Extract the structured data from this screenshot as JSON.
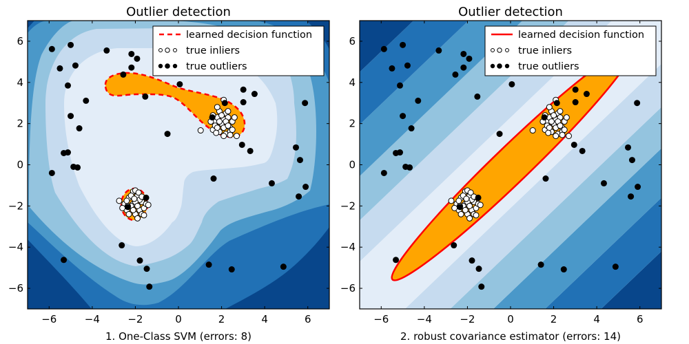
{
  "chart_data": [
    {
      "type": "scatter",
      "title": "Outlier detection",
      "xlabel": "1. One-Class SVM (errors: 8)",
      "ylabel": "",
      "xlim": [
        -7,
        7
      ],
      "ylim": [
        -7,
        7
      ],
      "xticks": [
        "−6",
        "−4",
        "−2",
        "0",
        "2",
        "4",
        "6"
      ],
      "yticks": [
        "6",
        "4",
        "2",
        "0",
        "−2",
        "−4",
        "−6"
      ],
      "grid": false,
      "background": "filled contour of decision function (blues), inlier region filled orange",
      "decision_line_style": "dashed",
      "legend": {
        "position": "top-right",
        "entries": [
          "learned decision function",
          "true inliers",
          "true outliers"
        ]
      },
      "colors": {
        "decision": "#ff0000",
        "inlier_region": "#ffa500",
        "contours": [
          "#08468b",
          "#2171b5",
          "#4a98c9",
          "#94c4df",
          "#c6dbef",
          "#e3edf8"
        ]
      },
      "series": [
        {
          "name": "true inliers",
          "points": [
            [
              2.1,
              2.2
            ],
            [
              1.7,
              2.1
            ],
            [
              2.4,
              1.8
            ],
            [
              1.9,
              1.6
            ],
            [
              2.2,
              2.5
            ],
            [
              1.6,
              1.7
            ],
            [
              2.3,
              2.3
            ],
            [
              2.0,
              2.0
            ],
            [
              1.8,
              2.3
            ],
            [
              2.5,
              2.1
            ],
            [
              2.1,
              1.8
            ],
            [
              1.7,
              1.9
            ],
            [
              2.2,
              1.5
            ],
            [
              1.9,
              2.6
            ],
            [
              2.6,
              2.3
            ],
            [
              2.4,
              1.6
            ],
            [
              1.5,
              2.1
            ],
            [
              2.2,
              2.1
            ],
            [
              1.8,
              1.8
            ],
            [
              2.3,
              1.9
            ],
            [
              2.0,
              2.4
            ],
            [
              1.6,
              2.4
            ],
            [
              2.1,
              1.4
            ],
            [
              2.5,
              1.7
            ],
            [
              1.9,
              2.1
            ],
            [
              2.3,
              2.6
            ],
            [
              2.7,
              1.4
            ],
            [
              1.8,
              2.8
            ],
            [
              2.1,
              3.15
            ],
            [
              1.03,
              1.67
            ],
            [
              2.4,
              1.45
            ],
            [
              1.75,
              1.55
            ],
            [
              -2.1,
              -1.9
            ],
            [
              -1.8,
              -2.2
            ],
            [
              -2.3,
              -1.6
            ],
            [
              -1.7,
              -1.8
            ],
            [
              -2.0,
              -2.4
            ],
            [
              -2.4,
              -2.2
            ],
            [
              -1.9,
              -1.5
            ],
            [
              -2.2,
              -2.0
            ],
            [
              -1.6,
              -2.1
            ],
            [
              -2.1,
              -1.3
            ],
            [
              -1.9,
              -2.6
            ],
            [
              -2.5,
              -1.9
            ],
            [
              -1.5,
              -1.9
            ],
            [
              -2.3,
              -2.4
            ],
            [
              -1.8,
              -1.7
            ],
            [
              -2.0,
              -1.8
            ],
            [
              -1.7,
              -2.4
            ],
            [
              -2.2,
              -1.5
            ],
            [
              -2.6,
              -2.1
            ],
            [
              -1.9,
              -2.0
            ],
            [
              -2.0,
              -1.25
            ],
            [
              -1.6,
              -2.45
            ],
            [
              -2.4,
              -1.75
            ],
            [
              -1.4,
              -1.95
            ],
            [
              -2.75,
              -1.75
            ],
            [
              -2.1,
              -2.2
            ],
            [
              -1.85,
              -1.35
            ],
            [
              -2.35,
              -2.0
            ],
            [
              -1.7,
              -1.55
            ],
            [
              -2.05,
              -1.65
            ]
          ]
        },
        {
          "name": "true outliers",
          "points": [
            [
              -5.87,
              5.62
            ],
            [
              -5.0,
              5.82
            ],
            [
              -5.5,
              4.68
            ],
            [
              -4.78,
              4.82
            ],
            [
              -5.13,
              3.85
            ],
            [
              -4.29,
              3.11
            ],
            [
              -5.0,
              2.37
            ],
            [
              -4.6,
              1.77
            ],
            [
              -5.32,
              0.57
            ],
            [
              -5.13,
              0.6
            ],
            [
              -4.87,
              -0.1
            ],
            [
              -4.68,
              -0.13
            ],
            [
              -5.87,
              -0.4
            ],
            [
              -3.33,
              5.55
            ],
            [
              -2.18,
              5.38
            ],
            [
              -1.92,
              5.15
            ],
            [
              -2.18,
              4.72
            ],
            [
              -2.56,
              4.38
            ],
            [
              -1.54,
              3.31
            ],
            [
              0.06,
              3.91
            ],
            [
              -0.51,
              1.5
            ],
            [
              3.01,
              3.65
            ],
            [
              3.53,
              3.44
            ],
            [
              3.01,
              3.04
            ],
            [
              2.15,
              3.0
            ],
            [
              1.57,
              2.3
            ],
            [
              5.87,
              3.0
            ],
            [
              2.95,
              0.97
            ],
            [
              3.33,
              0.67
            ],
            [
              5.45,
              0.84
            ],
            [
              5.64,
              0.23
            ],
            [
              1.63,
              -0.67
            ],
            [
              4.33,
              -0.9
            ],
            [
              5.9,
              -1.07
            ],
            [
              5.58,
              -1.54
            ],
            [
              -2.63,
              -3.91
            ],
            [
              -5.32,
              -4.62
            ],
            [
              -1.79,
              -4.65
            ],
            [
              -1.47,
              -5.05
            ],
            [
              -1.35,
              -5.92
            ],
            [
              1.41,
              -4.85
            ],
            [
              2.47,
              -5.08
            ],
            [
              4.87,
              -4.95
            ],
            [
              -1.5,
              -1.6
            ],
            [
              -2.35,
              -2.05
            ]
          ]
        }
      ]
    },
    {
      "type": "scatter",
      "title": "Outlier detection",
      "xlabel": "2. robust covariance estimator (errors: 14)",
      "ylabel": "",
      "xlim": [
        -7,
        7
      ],
      "ylim": [
        -7,
        7
      ],
      "xticks": [
        "−6",
        "−4",
        "−2",
        "0",
        "2",
        "4",
        "6"
      ],
      "yticks": [
        "6",
        "4",
        "2",
        "0",
        "−2",
        "−4",
        "−6"
      ],
      "grid": false,
      "background": "filled contour of Mahalanobis decision function (blues), inlier ellipse filled orange",
      "decision_line_style": "solid",
      "legend": {
        "position": "top-right",
        "entries": [
          "learned decision function",
          "true inliers",
          "true outliers"
        ]
      },
      "colors": {
        "decision": "#ff0000",
        "inlier_region": "#ffa500",
        "contours": [
          "#08468b",
          "#2171b5",
          "#4a98c9",
          "#94c4df",
          "#c6dbef",
          "#e3edf8"
        ]
      },
      "series": [
        {
          "name": "true inliers",
          "points": [
            [
              2.1,
              2.2
            ],
            [
              1.7,
              2.1
            ],
            [
              2.4,
              1.8
            ],
            [
              1.9,
              1.6
            ],
            [
              2.2,
              2.5
            ],
            [
              1.6,
              1.7
            ],
            [
              2.3,
              2.3
            ],
            [
              2.0,
              2.0
            ],
            [
              1.8,
              2.3
            ],
            [
              2.5,
              2.1
            ],
            [
              2.1,
              1.8
            ],
            [
              1.7,
              1.9
            ],
            [
              2.2,
              1.5
            ],
            [
              1.9,
              2.6
            ],
            [
              2.6,
              2.3
            ],
            [
              2.4,
              1.6
            ],
            [
              1.5,
              2.1
            ],
            [
              2.2,
              2.1
            ],
            [
              1.8,
              1.8
            ],
            [
              2.3,
              1.9
            ],
            [
              2.0,
              2.4
            ],
            [
              1.6,
              2.4
            ],
            [
              2.1,
              1.4
            ],
            [
              2.5,
              1.7
            ],
            [
              1.9,
              2.1
            ],
            [
              2.3,
              2.6
            ],
            [
              2.7,
              1.4
            ],
            [
              1.8,
              2.8
            ],
            [
              2.1,
              3.15
            ],
            [
              1.03,
              1.67
            ],
            [
              2.4,
              1.45
            ],
            [
              1.75,
              1.55
            ],
            [
              -2.1,
              -1.9
            ],
            [
              -1.8,
              -2.2
            ],
            [
              -2.3,
              -1.6
            ],
            [
              -1.7,
              -1.8
            ],
            [
              -2.0,
              -2.4
            ],
            [
              -2.4,
              -2.2
            ],
            [
              -1.9,
              -1.5
            ],
            [
              -2.2,
              -2.0
            ],
            [
              -1.6,
              -2.1
            ],
            [
              -2.1,
              -1.3
            ],
            [
              -1.9,
              -2.6
            ],
            [
              -2.5,
              -1.9
            ],
            [
              -1.5,
              -1.9
            ],
            [
              -2.3,
              -2.4
            ],
            [
              -1.8,
              -1.7
            ],
            [
              -2.0,
              -1.8
            ],
            [
              -1.7,
              -2.4
            ],
            [
              -2.2,
              -1.5
            ],
            [
              -2.6,
              -2.1
            ],
            [
              -1.9,
              -2.0
            ],
            [
              -2.0,
              -1.25
            ],
            [
              -1.6,
              -2.45
            ],
            [
              -2.4,
              -1.75
            ],
            [
              -1.4,
              -1.95
            ],
            [
              -2.75,
              -1.75
            ],
            [
              -2.1,
              -2.2
            ],
            [
              -1.85,
              -1.35
            ],
            [
              -2.35,
              -2.0
            ],
            [
              -1.7,
              -1.55
            ],
            [
              -2.05,
              -1.65
            ]
          ]
        },
        {
          "name": "true outliers",
          "points": [
            [
              -5.87,
              5.62
            ],
            [
              -5.0,
              5.82
            ],
            [
              -5.5,
              4.68
            ],
            [
              -4.78,
              4.82
            ],
            [
              -5.13,
              3.85
            ],
            [
              -4.29,
              3.11
            ],
            [
              -5.0,
              2.37
            ],
            [
              -4.6,
              1.77
            ],
            [
              -5.32,
              0.57
            ],
            [
              -5.13,
              0.6
            ],
            [
              -4.87,
              -0.1
            ],
            [
              -4.68,
              -0.13
            ],
            [
              -5.87,
              -0.4
            ],
            [
              -3.33,
              5.55
            ],
            [
              -2.18,
              5.38
            ],
            [
              -1.92,
              5.15
            ],
            [
              -2.18,
              4.72
            ],
            [
              -2.56,
              4.38
            ],
            [
              -1.54,
              3.31
            ],
            [
              0.06,
              3.91
            ],
            [
              -0.51,
              1.5
            ],
            [
              3.01,
              3.65
            ],
            [
              3.53,
              3.44
            ],
            [
              3.01,
              3.04
            ],
            [
              2.15,
              3.0
            ],
            [
              1.57,
              2.3
            ],
            [
              5.87,
              3.0
            ],
            [
              2.95,
              0.97
            ],
            [
              3.33,
              0.67
            ],
            [
              5.45,
              0.84
            ],
            [
              5.64,
              0.23
            ],
            [
              1.63,
              -0.67
            ],
            [
              4.33,
              -0.9
            ],
            [
              5.9,
              -1.07
            ],
            [
              5.58,
              -1.54
            ],
            [
              -2.63,
              -3.91
            ],
            [
              -5.32,
              -4.62
            ],
            [
              -1.79,
              -4.65
            ],
            [
              -1.47,
              -5.05
            ],
            [
              -1.35,
              -5.92
            ],
            [
              1.41,
              -4.85
            ],
            [
              2.47,
              -5.08
            ],
            [
              4.87,
              -4.95
            ],
            [
              -1.5,
              -1.6
            ],
            [
              -2.35,
              -2.05
            ]
          ]
        }
      ]
    }
  ]
}
